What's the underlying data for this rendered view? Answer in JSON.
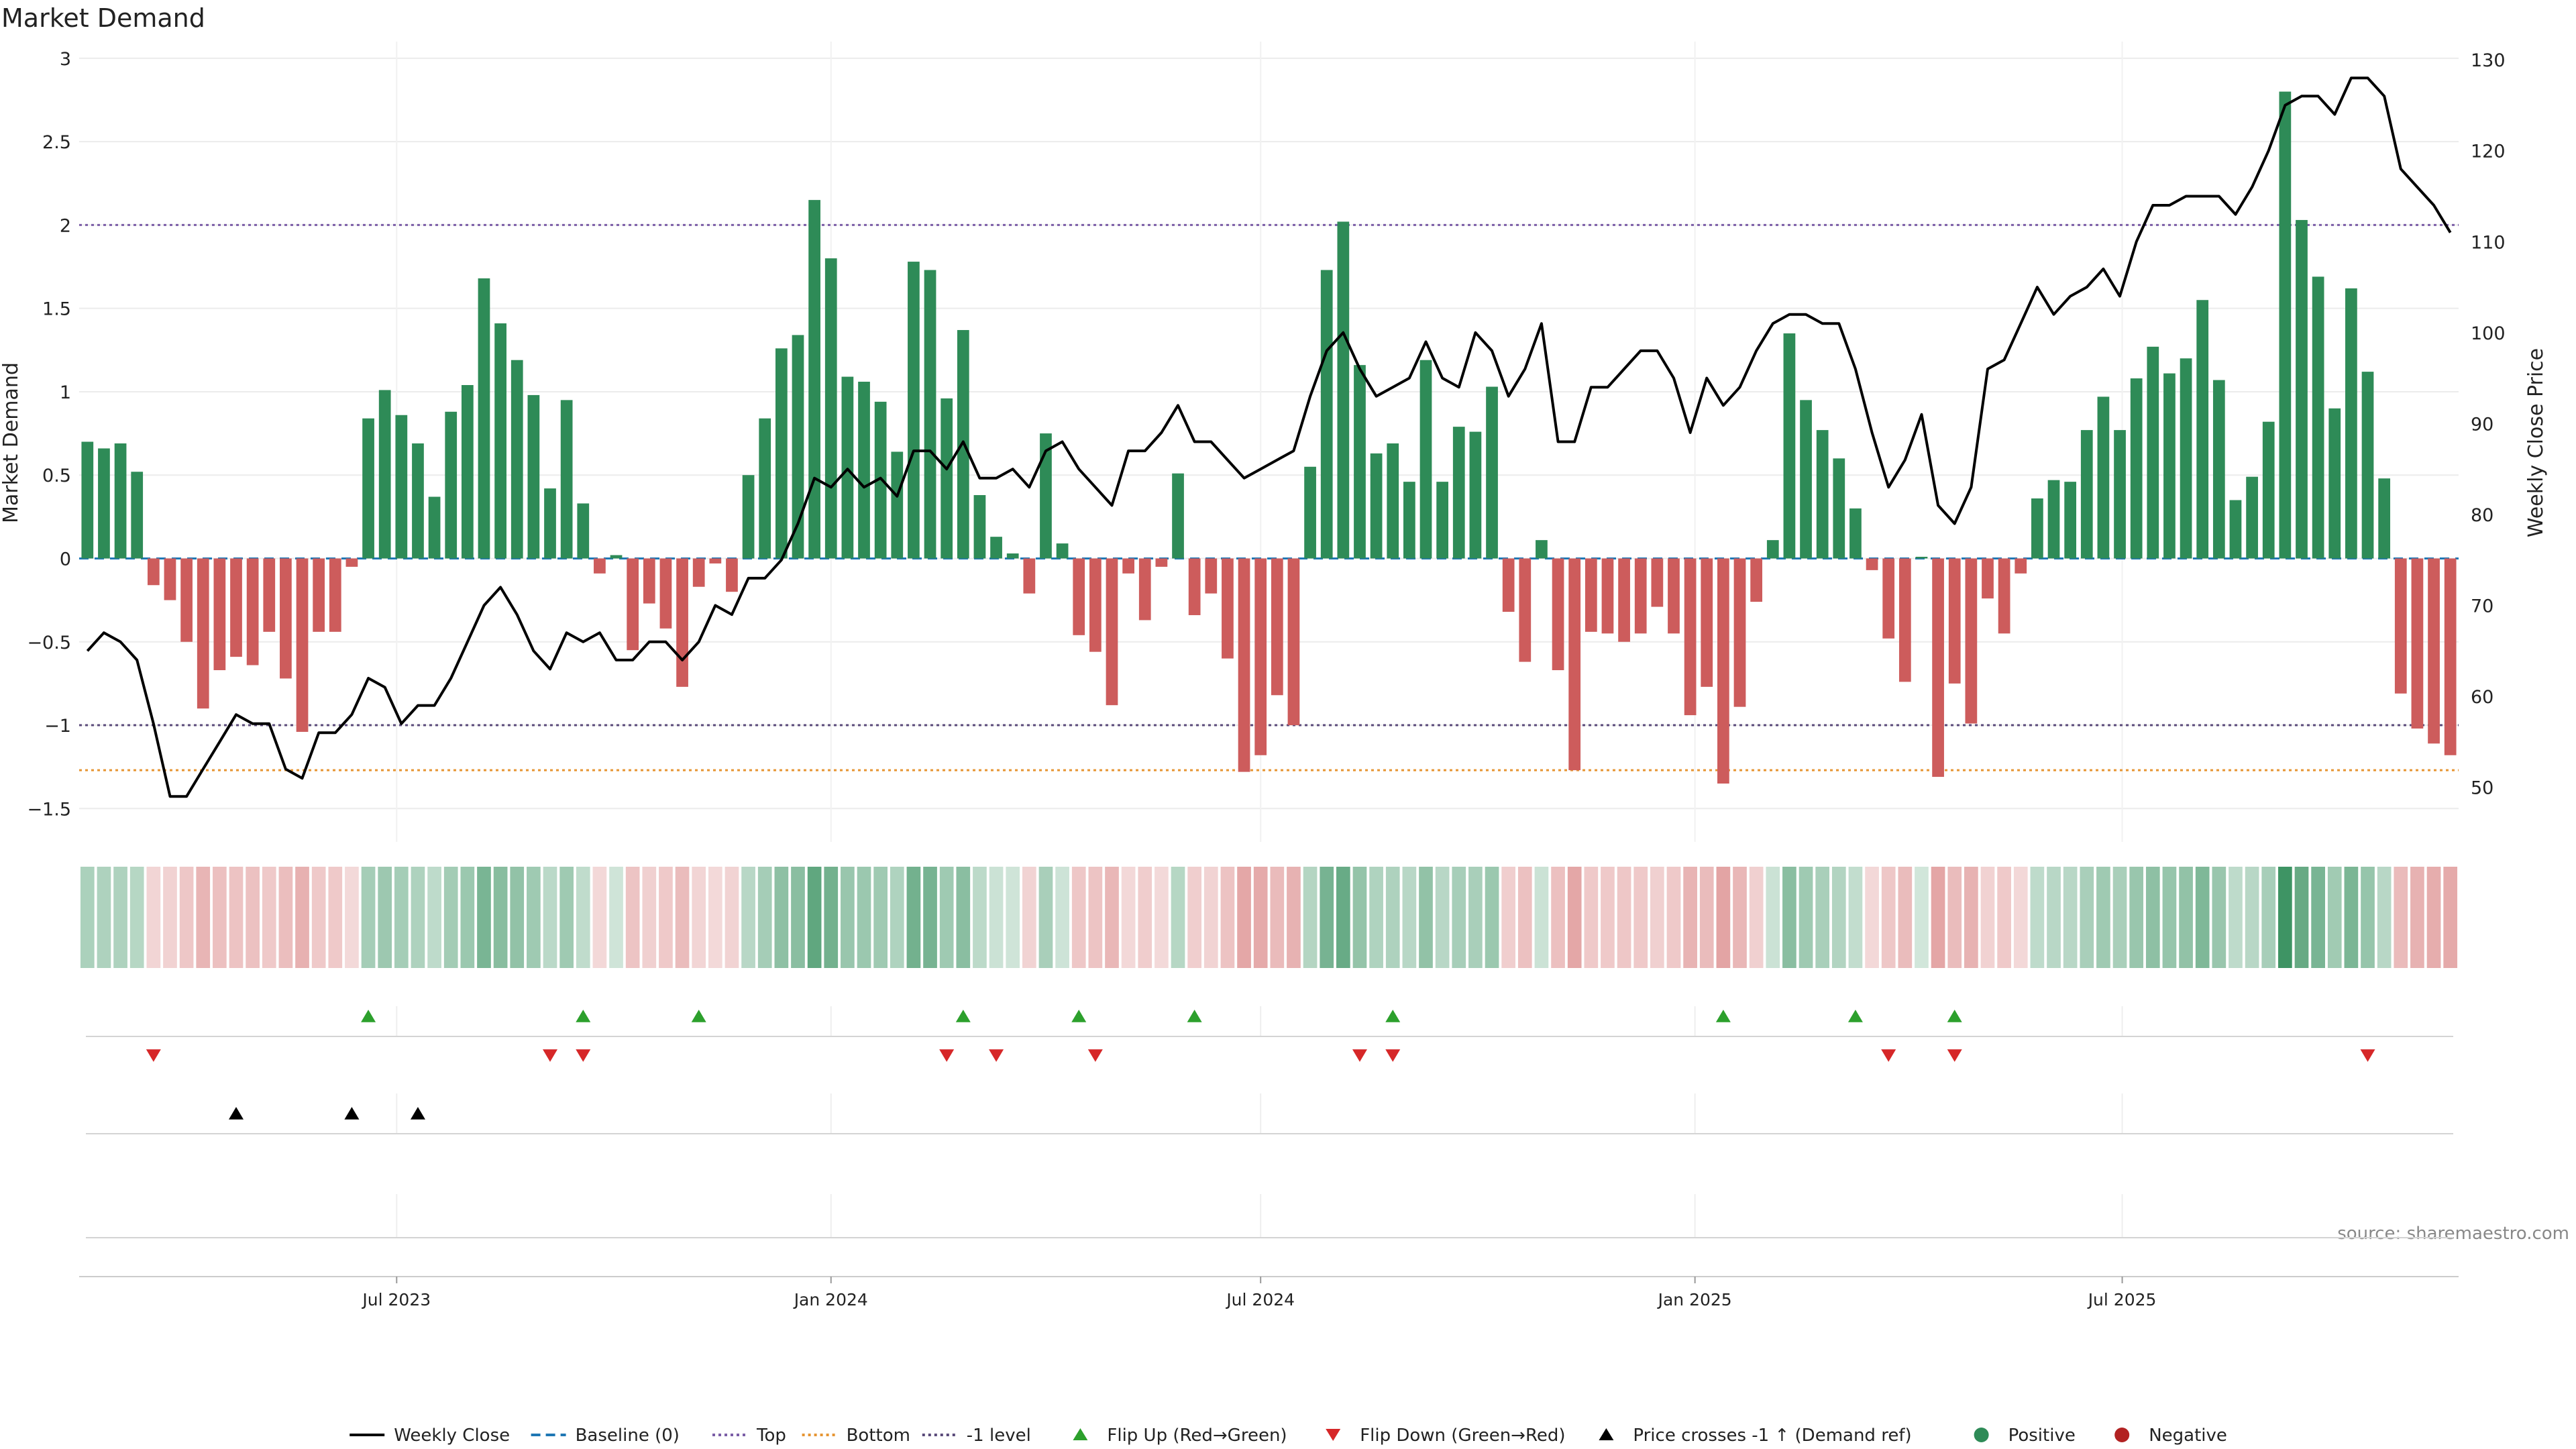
{
  "title": "Market Demand",
  "source": "source: sharemaestro.com",
  "colors": {
    "positive": "#2e8b57",
    "negative": "#cd5c5c",
    "price": "#000000",
    "baseline": "#1f77b4",
    "top": "#7b5ea7",
    "bottom": "#e69533",
    "minus_one": "#5a4a7a",
    "flip_up": "#2ca02c",
    "flip_down": "#d62728",
    "cross": "#000000",
    "grid": "#ececec"
  },
  "chart_data": {
    "type": "bar",
    "ylabel": "Market Demand",
    "y2label": "Weekly Close Price",
    "ylim": [
      -1.7,
      3.1
    ],
    "y2lim": [
      44,
      132
    ],
    "yticks": [
      3,
      2.5,
      2,
      1.5,
      1,
      0.5,
      0,
      -0.5,
      -1,
      -1.5
    ],
    "ytick_labels": [
      "3",
      "2.5",
      "2",
      "1.5",
      "1",
      "0.5",
      "0",
      "−0.5",
      "−1",
      "−1.5"
    ],
    "y2ticks": [
      130,
      120,
      110,
      100,
      90,
      80,
      70,
      60,
      50
    ],
    "y2tick_labels": [
      "130",
      "120",
      "110",
      "100",
      "90",
      "80",
      "70",
      "60",
      "50"
    ],
    "x_start": "2023-02-20",
    "x_end": "2025-11-17",
    "xticks": [
      "2023-07-01",
      "2024-01-01",
      "2024-07-01",
      "2025-01-01",
      "2025-07-01"
    ],
    "xtick_labels": [
      "Jul 2023",
      "Jan 2024",
      "Jul 2024",
      "Jan 2025",
      "Jul 2025"
    ],
    "levels": {
      "top": 2.0,
      "bottom": -1.27,
      "minus_one": -1.0,
      "baseline": 0
    },
    "demand": [
      0.7,
      0.66,
      0.69,
      0.52,
      -0.16,
      -0.25,
      -0.5,
      -0.9,
      -0.67,
      -0.59,
      -0.64,
      -0.44,
      -0.72,
      -1.04,
      -0.44,
      -0.44,
      -0.05,
      0.84,
      1.01,
      0.86,
      0.69,
      0.37,
      0.88,
      1.04,
      1.68,
      1.41,
      1.19,
      0.98,
      0.42,
      0.95,
      0.33,
      -0.09,
      0.02,
      -0.55,
      -0.27,
      -0.42,
      -0.77,
      -0.17,
      -0.03,
      -0.2,
      0.5,
      0.84,
      1.26,
      1.34,
      2.15,
      1.8,
      1.09,
      1.06,
      0.94,
      0.64,
      1.78,
      1.73,
      0.96,
      1.37,
      0.38,
      0.13,
      0.03,
      -0.21,
      0.75,
      0.09,
      -0.46,
      -0.56,
      -0.88,
      -0.09,
      -0.37,
      -0.05,
      0.51,
      -0.34,
      -0.21,
      -0.6,
      -1.28,
      -1.18,
      -0.82,
      -1.0,
      0.55,
      1.73,
      2.02,
      1.16,
      0.63,
      0.69,
      0.46,
      1.19,
      0.46,
      0.79,
      0.76,
      1.03,
      -0.32,
      -0.62,
      0.11,
      -0.67,
      -1.27,
      -0.44,
      -0.45,
      -0.5,
      -0.45,
      -0.29,
      -0.45,
      -0.94,
      -0.77,
      -1.35,
      -0.89,
      -0.26,
      0.11,
      1.35,
      0.95,
      0.77,
      0.6,
      0.3,
      -0.07,
      -0.48,
      -0.74,
      0.01,
      -1.31,
      -0.75,
      -0.99,
      -0.24,
      -0.45,
      -0.09,
      0.36,
      0.47,
      0.46,
      0.77,
      0.97,
      0.77,
      1.08,
      1.27,
      1.11,
      1.2,
      1.55,
      1.07,
      0.35,
      0.49,
      0.82,
      2.8,
      2.03,
      1.69,
      0.9,
      1.62,
      1.12,
      0.48,
      -0.81,
      -1.02,
      -1.11,
      -1.18
    ],
    "price": [
      65,
      67,
      66,
      64,
      57,
      49,
      49,
      52,
      55,
      58,
      57,
      57,
      52,
      51,
      56,
      56,
      58,
      62,
      61,
      57,
      59,
      59,
      62,
      66,
      70,
      72,
      69,
      65,
      63,
      67,
      66,
      67,
      64,
      64,
      66,
      66,
      64,
      66,
      70,
      69,
      73,
      73,
      75,
      79,
      84,
      83,
      85,
      83,
      84,
      82,
      87,
      87,
      85,
      88,
      84,
      84,
      85,
      83,
      87,
      88,
      85,
      83,
      81,
      87,
      87,
      89,
      92,
      88,
      88,
      86,
      84,
      85,
      86,
      87,
      93,
      98,
      100,
      96,
      93,
      94,
      95,
      99,
      95,
      94,
      100,
      98,
      93,
      96,
      101,
      88,
      88,
      94,
      94,
      96,
      98,
      98,
      95,
      89,
      95,
      92,
      94,
      98,
      101,
      102,
      102,
      101,
      101,
      96,
      89,
      83,
      86,
      91,
      81,
      79,
      83,
      96,
      97,
      101,
      105,
      102,
      104,
      105,
      107,
      104,
      110,
      114,
      114,
      115,
      115,
      115,
      113,
      116,
      120,
      125,
      126,
      126,
      124,
      128,
      128,
      126,
      118,
      116,
      114,
      111
    ],
    "flip_up_dates": [
      "2023-06-19",
      "2023-09-18",
      "2023-11-06",
      "2024-02-26",
      "2024-04-15",
      "2024-06-03",
      "2024-08-26",
      "2025-01-13",
      "2025-03-10",
      "2025-04-21"
    ],
    "flip_down_dates": [
      "2023-03-20",
      "2023-09-04",
      "2023-09-18",
      "2024-02-19",
      "2024-03-11",
      "2024-04-22",
      "2024-08-12",
      "2024-08-26",
      "2025-03-24",
      "2025-04-21",
      "2025-10-13"
    ],
    "cross_up_dates": [
      "2023-04-24",
      "2023-06-12",
      "2023-07-10"
    ],
    "legend": [
      {
        "label": "Weekly Close",
        "kind": "line-solid",
        "color": "#000000"
      },
      {
        "label": "Baseline (0)",
        "kind": "line-dashed",
        "color": "#1f77b4"
      },
      {
        "label": "Top",
        "kind": "line-dotted",
        "color": "#7b5ea7"
      },
      {
        "label": "Bottom",
        "kind": "line-dotted",
        "color": "#e69533"
      },
      {
        "label": "-1 level",
        "kind": "line-dotted",
        "color": "#5a4a7a"
      },
      {
        "label": "Flip Up (Red→Green)",
        "kind": "triangle-up",
        "color": "#2ca02c"
      },
      {
        "label": "Flip Down (Green→Red)",
        "kind": "triangle-down",
        "color": "#d62728"
      },
      {
        "label": "Price crosses -1 ↑ (Demand ref)",
        "kind": "triangle-up",
        "color": "#000000"
      },
      {
        "label": "Positive",
        "kind": "dot",
        "color": "#2e8b57"
      },
      {
        "label": "Negative",
        "kind": "dot",
        "color": "#b22222"
      }
    ]
  }
}
